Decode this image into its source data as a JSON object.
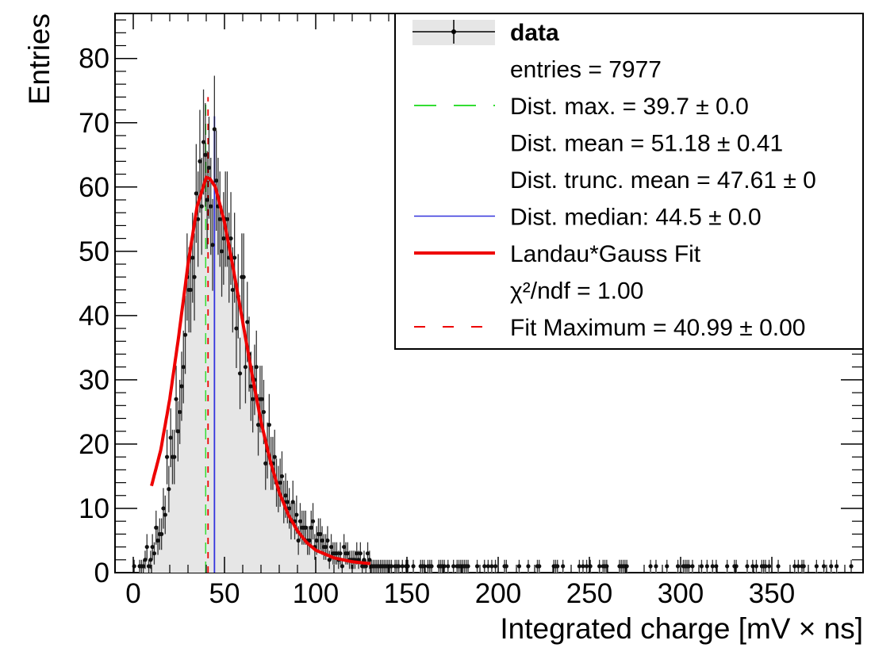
{
  "chart_data": {
    "type": "histogram",
    "xlabel": "Integrated charge [mV × ns]",
    "ylabel": "Entries",
    "xlim": [
      -10,
      400
    ],
    "ylim": [
      0,
      87
    ],
    "x_ticks": [
      0,
      50,
      100,
      150,
      200,
      250,
      300,
      350
    ],
    "y_ticks": [
      0,
      10,
      20,
      30,
      40,
      50,
      60,
      70,
      80
    ],
    "x_tick_labels": [
      "0",
      "50",
      "100",
      "150",
      "200",
      "250",
      "300",
      "350"
    ],
    "y_tick_labels": [
      "0",
      "10",
      "20",
      "30",
      "40",
      "50",
      "60",
      "70",
      "80"
    ],
    "bin_width": 1,
    "profile_points": [
      [
        0,
        0
      ],
      [
        5,
        1
      ],
      [
        10,
        4
      ],
      [
        15,
        8
      ],
      [
        20,
        16
      ],
      [
        25,
        27
      ],
      [
        30,
        42
      ],
      [
        35,
        55
      ],
      [
        40,
        62
      ],
      [
        45,
        61
      ],
      [
        50,
        56
      ],
      [
        55,
        47
      ],
      [
        60,
        40
      ],
      [
        65,
        31
      ],
      [
        70,
        24
      ],
      [
        75,
        18
      ],
      [
        80,
        14
      ],
      [
        85,
        10
      ],
      [
        90,
        8
      ],
      [
        95,
        6
      ],
      [
        100,
        4.5
      ],
      [
        110,
        3
      ],
      [
        120,
        2
      ],
      [
        130,
        1.5
      ],
      [
        140,
        1
      ],
      [
        150,
        0.8
      ],
      [
        200,
        0.4
      ],
      [
        300,
        0.25
      ],
      [
        400,
        0.2
      ]
    ],
    "fit_curve": [
      [
        10,
        13.5
      ],
      [
        15,
        19
      ],
      [
        20,
        27
      ],
      [
        25,
        37
      ],
      [
        30,
        48
      ],
      [
        35,
        57
      ],
      [
        40,
        61.5
      ],
      [
        42,
        61.3
      ],
      [
        45,
        60
      ],
      [
        50,
        54.5
      ],
      [
        55,
        47
      ],
      [
        60,
        39
      ],
      [
        65,
        31
      ],
      [
        70,
        23.5
      ],
      [
        75,
        17.5
      ],
      [
        80,
        12.5
      ],
      [
        85,
        9
      ],
      [
        90,
        6.5
      ],
      [
        95,
        4.7
      ],
      [
        100,
        3.5
      ],
      [
        110,
        2.3
      ],
      [
        120,
        1.7
      ],
      [
        130,
        1.4
      ]
    ],
    "markers": {
      "dist_max_x": 39.7,
      "dist_median_x": 44.5,
      "fit_max_x": 40.99
    },
    "legend": {
      "placement": "top-right",
      "entries": [
        {
          "label": "data",
          "style": "data",
          "color": "#000000"
        },
        {
          "label": "entries = 7977",
          "style": "none"
        },
        {
          "label": "Dist. max. = 39.7 ± 0.0",
          "style": "dash",
          "color": "#33dd33"
        },
        {
          "label": "Dist. mean = 51.18 ± 0.41",
          "style": "none"
        },
        {
          "label": "Dist. trunc. mean = 47.61 ± 0",
          "style": "none"
        },
        {
          "label": "Dist. median: 44.5 ± 0.0",
          "style": "line",
          "color": "#3333dd"
        },
        {
          "label": "Landau*Gauss Fit",
          "style": "thick",
          "color": "#ee0000"
        },
        {
          "label": "χ²/ndf = 1.00",
          "style": "none"
        },
        {
          "label": "Fit Maximum = 40.99 ± 0.00",
          "style": "dash",
          "color": "#ee0000"
        }
      ]
    }
  },
  "colors": {
    "fill": "#e6e6e6",
    "data": "#111111",
    "fit": "#ee0000",
    "median": "#3333dd",
    "dist_max": "#33dd33",
    "fit_max": "#ee0000"
  }
}
